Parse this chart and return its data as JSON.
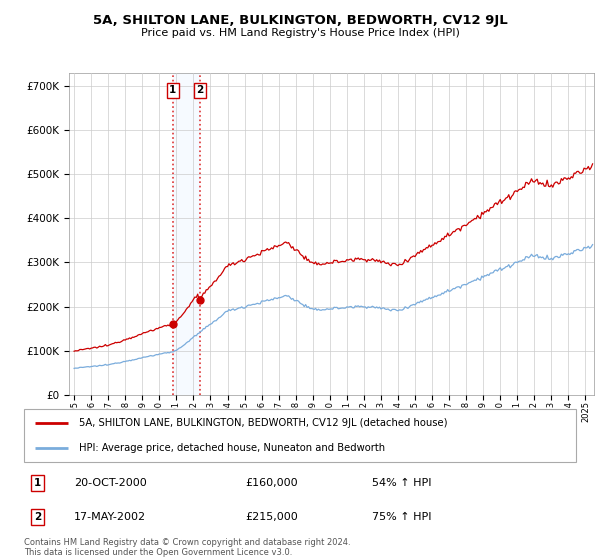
{
  "title": "5A, SHILTON LANE, BULKINGTON, BEDWORTH, CV12 9JL",
  "subtitle": "Price paid vs. HM Land Registry's House Price Index (HPI)",
  "legend_label1": "5A, SHILTON LANE, BULKINGTON, BEDWORTH, CV12 9JL (detached house)",
  "legend_label2": "HPI: Average price, detached house, Nuneaton and Bedworth",
  "sale1_date": "20-OCT-2000",
  "sale1_price": "£160,000",
  "sale1_hpi": "54% ↑ HPI",
  "sale1_year": 2000.79,
  "sale1_value": 160000,
  "sale2_date": "17-MAY-2002",
  "sale2_price": "£215,000",
  "sale2_hpi": "75% ↑ HPI",
  "sale2_year": 2002.37,
  "sale2_value": 215000,
  "copyright": "Contains HM Land Registry data © Crown copyright and database right 2024.\nThis data is licensed under the Open Government Licence v3.0.",
  "line_color_property": "#cc0000",
  "line_color_hpi": "#7aacdc",
  "vline_color": "#dd3333",
  "span_color": "#ddeeff",
  "background_color": "#ffffff",
  "grid_color": "#cccccc",
  "ylim": [
    0,
    730000
  ],
  "xlim_start": 1994.7,
  "xlim_end": 2025.5
}
